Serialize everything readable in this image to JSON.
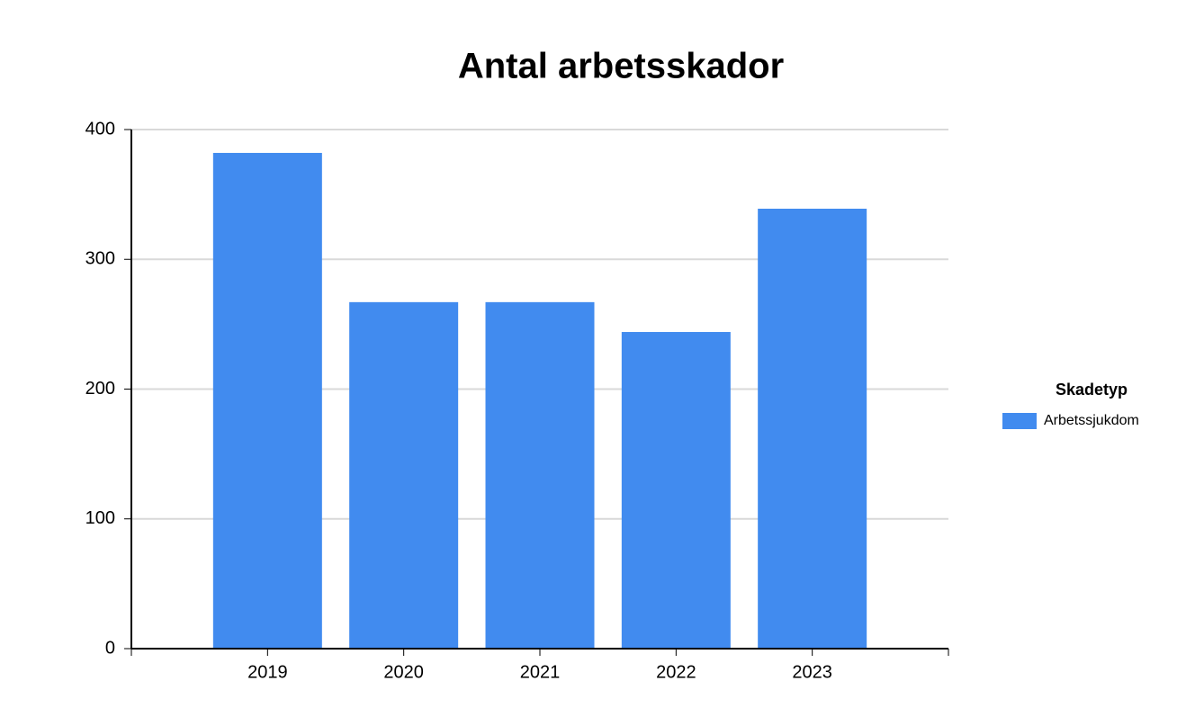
{
  "chart_data": {
    "type": "bar",
    "title": "Antal arbetsskador",
    "categories": [
      "2019",
      "2020",
      "2021",
      "2022",
      "2023"
    ],
    "series": [
      {
        "name": "Arbetssjukdom",
        "color": "#418bef",
        "values": [
          382,
          267,
          267,
          244,
          339
        ]
      }
    ],
    "legend_title": "Skadetyp",
    "legend": "right",
    "ylim": [
      0,
      400
    ],
    "yticks": [
      0,
      100,
      200,
      300,
      400
    ],
    "grid": true
  }
}
